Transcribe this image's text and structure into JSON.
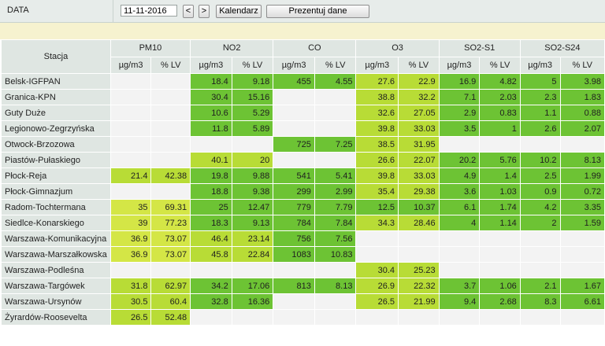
{
  "toolbar": {
    "date_label": "DATA",
    "date_value": "11-11-2016",
    "prev_label": "<",
    "next_label": ">",
    "calendar_label": "Kalendarz",
    "present_label": "Prezentuj dane"
  },
  "table": {
    "station_header": "Stacja",
    "pollutants": [
      {
        "name": "PM10",
        "units": [
          "µg/m3",
          "% LV"
        ]
      },
      {
        "name": "NO2",
        "units": [
          "µg/m3",
          "% LV"
        ]
      },
      {
        "name": "CO",
        "units": [
          "µg/m3",
          "% LV"
        ]
      },
      {
        "name": "O3",
        "units": [
          "µg/m3",
          "% LV"
        ]
      },
      {
        "name": "SO2-S1",
        "units": [
          "µg/m3",
          "% LV"
        ]
      },
      {
        "name": "SO2-S24",
        "units": [
          "µg/m3",
          "% LV"
        ]
      }
    ],
    "legend_colors": {
      "e": "#f3f3f3",
      "g1": "#6dc334",
      "g2": "#b8dc36",
      "g3": "#d4e646"
    },
    "rows": [
      {
        "station": "Belsk-IGFPAN",
        "cells": [
          [
            "",
            ""
          ],
          [
            "18.4",
            "9.18"
          ],
          [
            "455",
            "4.55"
          ],
          [
            "27.6",
            "22.9"
          ],
          [
            "16.9",
            "4.82"
          ],
          [
            "5",
            "3.98"
          ]
        ],
        "colors": [
          "e",
          "g1",
          "g1",
          "g2",
          "g1",
          "g1"
        ]
      },
      {
        "station": "Granica-KPN",
        "cells": [
          [
            "",
            ""
          ],
          [
            "30.4",
            "15.16"
          ],
          [
            "",
            ""
          ],
          [
            "38.8",
            "32.2"
          ],
          [
            "7.1",
            "2.03"
          ],
          [
            "2.3",
            "1.83"
          ]
        ],
        "colors": [
          "e",
          "g1",
          "e",
          "g2",
          "g1",
          "g1"
        ]
      },
      {
        "station": "Guty Duże",
        "cells": [
          [
            "",
            ""
          ],
          [
            "10.6",
            "5.29"
          ],
          [
            "",
            ""
          ],
          [
            "32.6",
            "27.05"
          ],
          [
            "2.9",
            "0.83"
          ],
          [
            "1.1",
            "0.88"
          ]
        ],
        "colors": [
          "e",
          "g1",
          "e",
          "g2",
          "g1",
          "g1"
        ]
      },
      {
        "station": "Legionowo-Zegrzyńska",
        "cells": [
          [
            "",
            ""
          ],
          [
            "11.8",
            "5.89"
          ],
          [
            "",
            ""
          ],
          [
            "39.8",
            "33.03"
          ],
          [
            "3.5",
            "1"
          ],
          [
            "2.6",
            "2.07"
          ]
        ],
        "colors": [
          "e",
          "g1",
          "e",
          "g2",
          "g1",
          "g1"
        ]
      },
      {
        "station": "Otwock-Brzozowa",
        "cells": [
          [
            "",
            ""
          ],
          [
            "",
            ""
          ],
          [
            "725",
            "7.25"
          ],
          [
            "38.5",
            "31.95"
          ],
          [
            "",
            ""
          ],
          [
            "",
            ""
          ]
        ],
        "colors": [
          "e",
          "e",
          "g1",
          "g2",
          "e",
          "e"
        ]
      },
      {
        "station": "Piastów-Pułaskiego",
        "cells": [
          [
            "",
            ""
          ],
          [
            "40.1",
            "20"
          ],
          [
            "",
            ""
          ],
          [
            "26.6",
            "22.07"
          ],
          [
            "20.2",
            "5.76"
          ],
          [
            "10.2",
            "8.13"
          ]
        ],
        "colors": [
          "e",
          "g2",
          "e",
          "g2",
          "g1",
          "g1"
        ]
      },
      {
        "station": "Płock-Reja",
        "cells": [
          [
            "21.4",
            "42.38"
          ],
          [
            "19.8",
            "9.88"
          ],
          [
            "541",
            "5.41"
          ],
          [
            "39.8",
            "33.03"
          ],
          [
            "4.9",
            "1.4"
          ],
          [
            "2.5",
            "1.99"
          ]
        ],
        "colors": [
          "g2",
          "g1",
          "g1",
          "g2",
          "g1",
          "g1"
        ]
      },
      {
        "station": "Płock-Gimnazjum",
        "cells": [
          [
            "",
            ""
          ],
          [
            "18.8",
            "9.38"
          ],
          [
            "299",
            "2.99"
          ],
          [
            "35.4",
            "29.38"
          ],
          [
            "3.6",
            "1.03"
          ],
          [
            "0.9",
            "0.72"
          ]
        ],
        "colors": [
          "e",
          "g1",
          "g1",
          "g2",
          "g1",
          "g1"
        ]
      },
      {
        "station": "Radom-Tochtermana",
        "cells": [
          [
            "35",
            "69.31"
          ],
          [
            "25",
            "12.47"
          ],
          [
            "779",
            "7.79"
          ],
          [
            "12.5",
            "10.37"
          ],
          [
            "6.1",
            "1.74"
          ],
          [
            "4.2",
            "3.35"
          ]
        ],
        "colors": [
          "g3",
          "g1",
          "g1",
          "g1",
          "g1",
          "g1"
        ]
      },
      {
        "station": "Siedlce-Konarskiego",
        "cells": [
          [
            "39",
            "77.23"
          ],
          [
            "18.3",
            "9.13"
          ],
          [
            "784",
            "7.84"
          ],
          [
            "34.3",
            "28.46"
          ],
          [
            "4",
            "1.14"
          ],
          [
            "2",
            "1.59"
          ]
        ],
        "colors": [
          "g3",
          "g1",
          "g1",
          "g2",
          "g1",
          "g1"
        ]
      },
      {
        "station": "Warszawa-Komunikacyjna",
        "cells": [
          [
            "36.9",
            "73.07"
          ],
          [
            "46.4",
            "23.14"
          ],
          [
            "756",
            "7.56"
          ],
          [
            "",
            ""
          ],
          [
            "",
            ""
          ],
          [
            "",
            ""
          ]
        ],
        "colors": [
          "g3",
          "g2",
          "g1",
          "e",
          "e",
          "e"
        ]
      },
      {
        "station": "Warszawa-Marszałkowska",
        "cells": [
          [
            "36.9",
            "73.07"
          ],
          [
            "45.8",
            "22.84"
          ],
          [
            "1083",
            "10.83"
          ],
          [
            "",
            ""
          ],
          [
            "",
            ""
          ],
          [
            "",
            ""
          ]
        ],
        "colors": [
          "g3",
          "g2",
          "g1",
          "e",
          "e",
          "e"
        ]
      },
      {
        "station": "Warszawa-Podleśna",
        "cells": [
          [
            "",
            ""
          ],
          [
            "",
            ""
          ],
          [
            "",
            ""
          ],
          [
            "30.4",
            "25.23"
          ],
          [
            "",
            ""
          ],
          [
            "",
            ""
          ]
        ],
        "colors": [
          "e",
          "e",
          "e",
          "g2",
          "e",
          "e"
        ]
      },
      {
        "station": "Warszawa-Targówek",
        "cells": [
          [
            "31.8",
            "62.97"
          ],
          [
            "34.2",
            "17.06"
          ],
          [
            "813",
            "8.13"
          ],
          [
            "26.9",
            "22.32"
          ],
          [
            "3.7",
            "1.06"
          ],
          [
            "2.1",
            "1.67"
          ]
        ],
        "colors": [
          "g2",
          "g1",
          "g1",
          "g2",
          "g1",
          "g1"
        ]
      },
      {
        "station": "Warszawa-Ursynów",
        "cells": [
          [
            "30.5",
            "60.4"
          ],
          [
            "32.8",
            "16.36"
          ],
          [
            "",
            ""
          ],
          [
            "26.5",
            "21.99"
          ],
          [
            "9.4",
            "2.68"
          ],
          [
            "8.3",
            "6.61"
          ]
        ],
        "colors": [
          "g2",
          "g1",
          "e",
          "g2",
          "g1",
          "g1"
        ]
      },
      {
        "station": "Żyrardów-Roosevelta",
        "cells": [
          [
            "26.5",
            "52.48"
          ],
          [
            "",
            ""
          ],
          [
            "",
            ""
          ],
          [
            "",
            ""
          ],
          [
            "",
            ""
          ],
          [
            "",
            ""
          ]
        ],
        "colors": [
          "g2",
          "e",
          "e",
          "e",
          "e",
          "e"
        ]
      }
    ]
  }
}
